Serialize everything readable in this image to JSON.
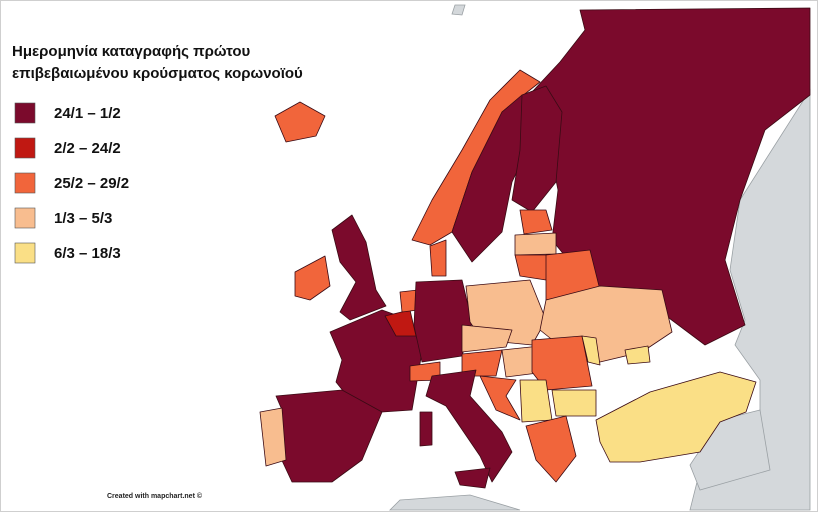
{
  "title": [
    "Ημερομηνία καταγραφής πρώτου",
    "επιβεβαιωμένου κρούσματος κορωνοϊού"
  ],
  "legend": [
    {
      "label": "24/1 – 1/2",
      "color": "#7b0a2c"
    },
    {
      "label": "2/2 – 24/2",
      "color": "#c01812"
    },
    {
      "label": "25/2 – 29/2",
      "color": "#f1653b"
    },
    {
      "label": "1/3 – 5/3",
      "color": "#f8bd8f"
    },
    {
      "label": "6/3 – 18/3",
      "color": "#fadf86"
    }
  ],
  "credit": "Created with mapchart.net ©"
}
